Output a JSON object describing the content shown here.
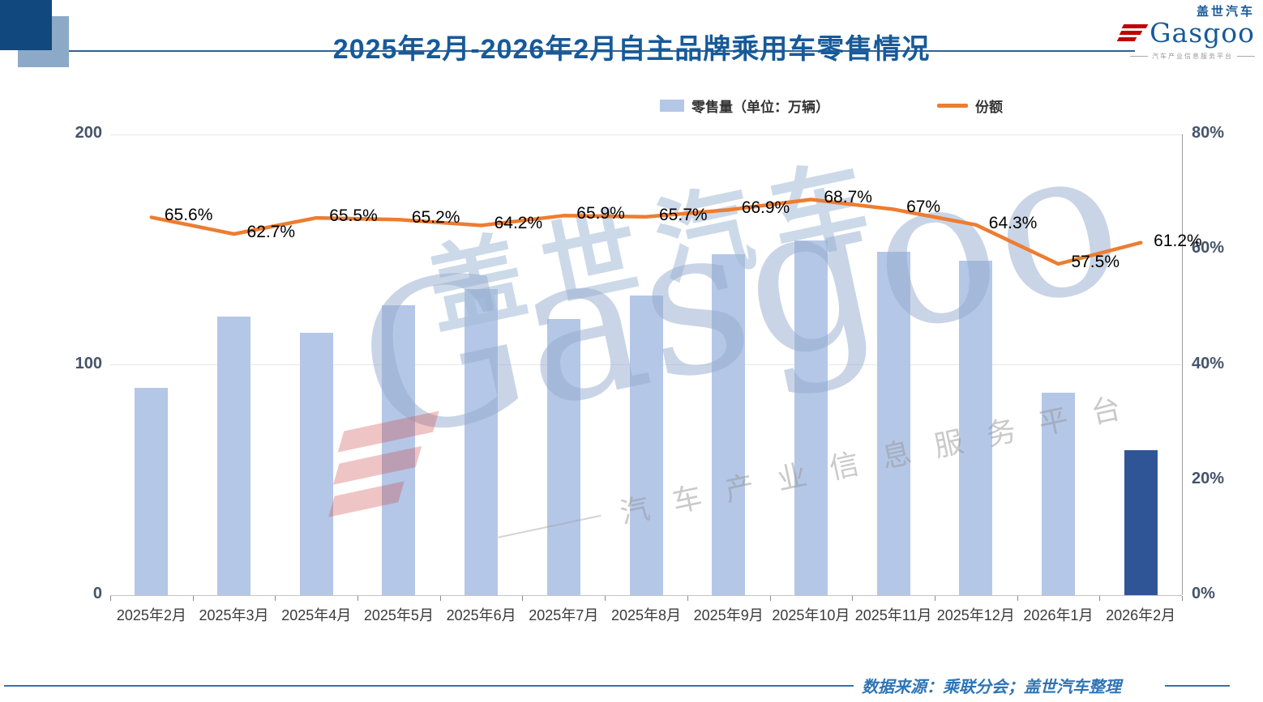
{
  "page": {
    "title": "2025年2月-2026年2月自主品牌乘用车零售情况"
  },
  "logo": {
    "cn": "盖世汽车",
    "en": "Gasgoo",
    "tagline": "汽车产业信息服务平台"
  },
  "legend": {
    "bars": "零售量（单位：万辆）",
    "line": "份额"
  },
  "watermark": {
    "cn": "盖世汽车",
    "en": "Gasgoo",
    "tagline": "汽车产业信息服务平台"
  },
  "footer": {
    "source": "数据来源：乘联分会；盖世汽车整理"
  },
  "chart_data": {
    "type": "bar",
    "title": "2025年2月-2026年2月自主品牌乘用车零售情况",
    "categories": [
      "2025年2月",
      "2025年3月",
      "2025年4月",
      "2025年5月",
      "2025年6月",
      "2025年7月",
      "2025年8月",
      "2025年9月",
      "2025年10月",
      "2025年11月",
      "2025年12月",
      "2026年1月",
      "2026年2月"
    ],
    "series": [
      {
        "name": "零售量（单位：万辆）",
        "type": "bar",
        "axis": "left",
        "values": [
          90,
          121,
          114,
          126,
          133,
          120,
          130,
          148,
          154,
          149,
          145,
          88,
          63
        ]
      },
      {
        "name": "份额",
        "type": "line",
        "axis": "right",
        "values": [
          65.6,
          62.7,
          65.5,
          65.2,
          64.2,
          65.9,
          65.7,
          66.9,
          68.7,
          67,
          64.3,
          57.5,
          61.2
        ],
        "labels": [
          "65.6%",
          "62.7%",
          "65.5%",
          "65.2%",
          "64.2%",
          "65.9%",
          "65.7%",
          "66.9%",
          "68.7%",
          "67%",
          "64.3%",
          "57.5%",
          "61.2%"
        ]
      }
    ],
    "left_axis": {
      "ticks": [
        0,
        100,
        200
      ],
      "max": 200,
      "tick_labels": [
        "0",
        "100",
        "200"
      ]
    },
    "right_axis": {
      "ticks": [
        0,
        20,
        40,
        60,
        80
      ],
      "max": 80,
      "tick_labels": [
        "0%",
        "20%",
        "40%",
        "60%",
        "80%"
      ]
    },
    "legend_position": "top",
    "grid": "horizontal",
    "colors": {
      "bar": "#B4C7E7",
      "bar_highlight": "#2F5597",
      "line": "#ED7D31"
    },
    "highlight_index": 12
  }
}
